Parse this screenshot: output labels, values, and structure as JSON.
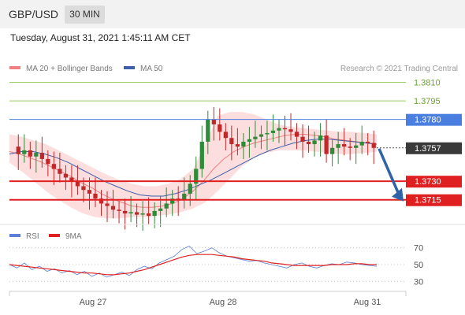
{
  "header": {
    "symbol": "GBP/USD",
    "timeframe": "30 MIN"
  },
  "timestamp": "Tuesday, August 31, 2021 1:45:11 AM CET",
  "copyright": "Research © 2021 Trading Central",
  "colors": {
    "bb_band": "#fcd3d3",
    "ma20": "#f08080",
    "ma50": "#3b5fa8",
    "resistance": "#9acd5f",
    "pivot": "#4a7fe0",
    "support": "#e02020",
    "candle_up": "#2e8b3a",
    "candle_down": "#c0282a",
    "arrow": "#2f63a8",
    "rsi": "#5b7fd6",
    "rsi_ma": "#e02020",
    "price_tag": "#3a3a3a"
  },
  "chart_data": [
    {
      "type": "candlestick",
      "title": "GBP/USD",
      "legend": [
        {
          "name": "MA 20 + Bollinger Bands",
          "color": "#f08080"
        },
        {
          "name": "MA 50",
          "color": "#3b5fa8"
        }
      ],
      "x_ticks": [
        "Aug 27",
        "Aug 28",
        "Aug 31"
      ],
      "ylim": [
        1.3697,
        1.3818
      ],
      "current_price": 1.3757,
      "levels": [
        {
          "label": "1.3810",
          "value": 1.381,
          "kind": "resistance"
        },
        {
          "label": "1.3795",
          "value": 1.3795,
          "kind": "resistance"
        },
        {
          "label": "1.3780",
          "value": 1.378,
          "kind": "pivot"
        },
        {
          "label": "1.3730",
          "value": 1.373,
          "kind": "support"
        },
        {
          "label": "1.3715",
          "value": 1.3715,
          "kind": "support"
        }
      ],
      "price_series": [
        1.3758,
        1.3752,
        1.3755,
        1.375,
        1.3753,
        1.3748,
        1.3744,
        1.374,
        1.3736,
        1.3733,
        1.373,
        1.3726,
        1.3723,
        1.372,
        1.3716,
        1.3712,
        1.371,
        1.3707,
        1.3706,
        1.3704,
        1.3705,
        1.3703,
        1.3704,
        1.3702,
        1.3706,
        1.3708,
        1.3712,
        1.3716,
        1.3715,
        1.372,
        1.3728,
        1.374,
        1.3762,
        1.378,
        1.3776,
        1.377,
        1.3765,
        1.376,
        1.3758,
        1.3762,
        1.3764,
        1.3766,
        1.3768,
        1.3769,
        1.3771,
        1.3773,
        1.3772,
        1.377,
        1.3766,
        1.3762,
        1.376,
        1.3763,
        1.3767,
        1.3752,
        1.3757,
        1.376,
        1.3758,
        1.3757,
        1.3759,
        1.3762,
        1.3761,
        1.3757
      ],
      "ma20_series": [
        1.3754,
        1.3752,
        1.3749,
        1.3746,
        1.3742,
        1.3738,
        1.3734,
        1.3729,
        1.3725,
        1.372,
        1.3716,
        1.3713,
        1.371,
        1.3709,
        1.3709,
        1.371,
        1.3712,
        1.3716,
        1.3722,
        1.373,
        1.374,
        1.3748,
        1.3754,
        1.3758,
        1.3761,
        1.3763,
        1.3765,
        1.3767,
        1.3768,
        1.3768,
        1.3767,
        1.3766,
        1.3764,
        1.3763,
        1.3762,
        1.3761,
        1.376
      ],
      "ma50_series": [
        1.3752,
        1.3754,
        1.3754,
        1.3752,
        1.3749,
        1.3745,
        1.374,
        1.3735,
        1.373,
        1.3726,
        1.3722,
        1.3719,
        1.3718,
        1.3718,
        1.372,
        1.3723,
        1.3727,
        1.3731,
        1.3736,
        1.3741,
        1.3746,
        1.3751,
        1.3755,
        1.3758,
        1.3761,
        1.3763,
        1.3764,
        1.3764,
        1.3763,
        1.3762,
        1.3761,
        1.376
      ],
      "bb_upper": [
        1.3768,
        1.3766,
        1.3763,
        1.376,
        1.3755,
        1.375,
        1.3745,
        1.374,
        1.3735,
        1.3731,
        1.3728,
        1.3726,
        1.3726,
        1.3728,
        1.3732,
        1.374,
        1.376,
        1.3783,
        1.3786,
        1.3786,
        1.3784,
        1.378,
        1.3776,
        1.3774,
        1.3773,
        1.3772,
        1.3771,
        1.377,
        1.377,
        1.3769,
        1.3768
      ],
      "bb_lower": [
        1.3745,
        1.3738,
        1.373,
        1.3722,
        1.3715,
        1.3709,
        1.3704,
        1.3701,
        1.37,
        1.37,
        1.3701,
        1.3701,
        1.3702,
        1.3703,
        1.3705,
        1.3708,
        1.3713,
        1.3722,
        1.3732,
        1.3742,
        1.3749,
        1.3753,
        1.3755,
        1.3755,
        1.3755,
        1.3754,
        1.3753,
        1.3752,
        1.3752,
        1.3753,
        1.3754
      ],
      "forecast_arrow": {
        "from": 1.3757,
        "to": 1.3715
      }
    },
    {
      "type": "line",
      "title": "RSI",
      "legend": [
        {
          "name": "RSI",
          "color": "#5b7fd6"
        },
        {
          "name": "9MA",
          "color": "#e02020"
        }
      ],
      "y_ticks": [
        "70",
        "50",
        "30"
      ],
      "ylim": [
        20,
        80
      ],
      "series": [
        {
          "name": "RSI",
          "values": [
            50,
            46,
            52,
            44,
            48,
            42,
            45,
            40,
            43,
            38,
            42,
            36,
            40,
            35,
            38,
            41,
            37,
            44,
            48,
            45,
            52,
            56,
            60,
            68,
            72,
            63,
            66,
            70,
            64,
            60,
            58,
            56,
            54,
            55,
            52,
            50,
            48,
            46,
            50,
            52,
            48,
            46,
            49,
            51,
            50,
            53,
            52,
            50,
            49,
            48
          ]
        },
        {
          "name": "9MA",
          "values": [
            50,
            49,
            48,
            47,
            46,
            45,
            44,
            43,
            42,
            41,
            40,
            40,
            39,
            38,
            38,
            39,
            40,
            42,
            44,
            47,
            50,
            53,
            56,
            59,
            61,
            62,
            62,
            62,
            61,
            60,
            59,
            57,
            56,
            55,
            54,
            52,
            51,
            50,
            49,
            49,
            49,
            49,
            49,
            50,
            50,
            50,
            51,
            51,
            50,
            50
          ]
        }
      ]
    }
  ]
}
